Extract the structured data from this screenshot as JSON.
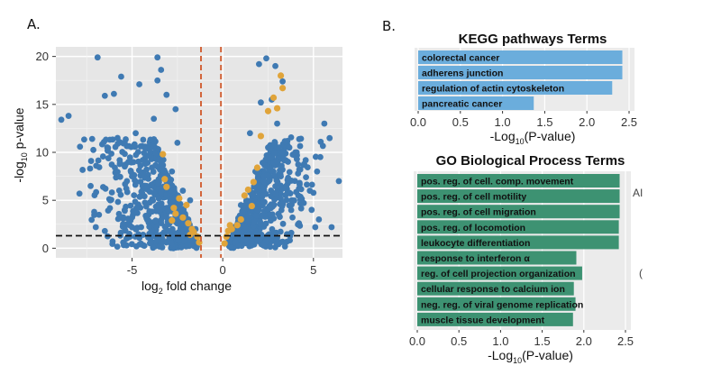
{
  "panels": {
    "a_label": "A.",
    "b_label": "B."
  },
  "stray_text": {
    "right_1": "AI",
    "right_2": "("
  },
  "colors": {
    "volcano_bg": "#e6e6e6",
    "point_main": "#3f7ab3",
    "point_highlight": "#e0a43a",
    "vline": "#d2643a",
    "hline": "#111111",
    "kegg_bar": "#6baddc",
    "go_bar": "#3d9272"
  },
  "chart_data": [
    {
      "type": "scatter",
      "title": "",
      "xlabel_main": "log",
      "xlabel_sub": "2",
      "xlabel_rest": " fold change",
      "ylabel_main": "-log",
      "ylabel_sub": "10",
      "ylabel_rest": " p-value",
      "xlim": [
        -9.2,
        6.6
      ],
      "ylim": [
        -1,
        21
      ],
      "xticks": [
        "-5",
        "0",
        "5"
      ],
      "xtick_values": [
        -5,
        0,
        5
      ],
      "yticks": [
        "0",
        "5",
        "10",
        "15",
        "20"
      ],
      "ytick_values": [
        0,
        5,
        10,
        15,
        20
      ],
      "vlines": [
        -1.2,
        -0.1
      ],
      "hline": 1.3,
      "series": [
        {
          "points": [
            [
              -8.9,
              13.4
            ],
            [
              -8.5,
              13.8
            ],
            [
              -7.9,
              5.7
            ],
            [
              -7.2,
              11.4
            ],
            [
              -6.9,
              19.9
            ],
            [
              -6.5,
              15.9
            ],
            [
              -6.0,
              16.1
            ],
            [
              -5.6,
              17.9
            ],
            [
              -5.4,
              3.9
            ],
            [
              -4.6,
              17.1
            ],
            [
              -3.6,
              19.9
            ],
            [
              -3.6,
              17.5
            ],
            [
              -3.4,
              18.6
            ],
            [
              -3.1,
              16.0
            ],
            [
              -5.2,
              9.0
            ],
            [
              -4.8,
              12.0
            ],
            [
              -3.8,
              13.5
            ],
            [
              -4.2,
              6.5
            ],
            [
              -6.2,
              5.0
            ],
            [
              -5.5,
              2.5
            ],
            [
              -5.0,
              7.5
            ],
            [
              -2.5,
              11.0
            ],
            [
              -2.8,
              8.0
            ],
            [
              -3.5,
              4.5
            ],
            [
              -2.2,
              6.0
            ],
            [
              -1.9,
              3.0
            ],
            [
              -1.5,
              2.0
            ],
            [
              -1.8,
              5.0
            ],
            [
              -6.5,
              1.8
            ],
            [
              -7.0,
              2.2
            ],
            [
              -3.0,
              1.8
            ],
            [
              -4.5,
              2.2
            ],
            [
              -2.6,
              14.5
            ],
            [
              -5.8,
              11.5
            ],
            [
              -4.0,
              10.0
            ],
            [
              2.4,
              19.8
            ],
            [
              2.0,
              19.2
            ],
            [
              2.9,
              19.0
            ],
            [
              3.3,
              17.4
            ],
            [
              2.7,
              15.5
            ],
            [
              2.1,
              15.2
            ],
            [
              3.0,
              13.0
            ],
            [
              5.6,
              13.0
            ],
            [
              5.4,
              11.1
            ],
            [
              4.5,
              8.7
            ],
            [
              5.2,
              8.0
            ],
            [
              6.4,
              7.0
            ],
            [
              4.9,
              4.0
            ],
            [
              5.3,
              3.0
            ],
            [
              4.2,
              2.6
            ],
            [
              5.1,
              2.2
            ],
            [
              1.5,
              12.0
            ],
            [
              2.5,
              10.5
            ],
            [
              3.5,
              6.5
            ],
            [
              1.8,
              8.0
            ],
            [
              3.8,
              5.0
            ],
            [
              2.6,
              3.5
            ],
            [
              0.6,
              2.2
            ],
            [
              1.0,
              4.5
            ],
            [
              4.0,
              10.0
            ],
            [
              3.2,
              7.5
            ],
            [
              4.8,
              6.0
            ],
            [
              1.4,
              2.8
            ],
            [
              2.2,
              5.5
            ],
            [
              6.0,
              2.2
            ]
          ]
        },
        {
          "points": [
            [
              -3.3,
              9.8
            ],
            [
              -3.2,
              7.2
            ],
            [
              -3.1,
              6.4
            ],
            [
              -2.7,
              4.2
            ],
            [
              -2.6,
              3.6
            ],
            [
              -2.8,
              2.9
            ],
            [
              -2.2,
              3.2
            ],
            [
              -1.9,
              2.6
            ],
            [
              -1.7,
              2.0
            ],
            [
              -1.6,
              1.7
            ],
            [
              -1.4,
              1.2
            ],
            [
              -1.3,
              0.6
            ],
            [
              -2.4,
              5.2
            ],
            [
              -2.0,
              4.5
            ],
            [
              -1.8,
              1.4
            ],
            [
              0.1,
              0.5
            ],
            [
              0.2,
              1.2
            ],
            [
              0.3,
              1.8
            ],
            [
              0.4,
              2.4
            ],
            [
              0.5,
              2.0
            ],
            [
              0.8,
              2.4
            ],
            [
              1.0,
              3.0
            ],
            [
              1.2,
              5.5
            ],
            [
              1.4,
              6.1
            ],
            [
              1.7,
              6.9
            ],
            [
              1.9,
              8.4
            ],
            [
              2.1,
              11.7
            ],
            [
              2.5,
              14.3
            ],
            [
              2.8,
              15.7
            ],
            [
              3.0,
              14.6
            ],
            [
              3.3,
              16.7
            ],
            [
              3.2,
              18.0
            ],
            [
              1.6,
              4.4
            ]
          ]
        }
      ]
    },
    {
      "type": "bar",
      "title": "KEGG pathways Terms",
      "xlabel_main": "-Log",
      "xlabel_sub": "10",
      "xlabel_rest": "(P-value)",
      "xlim": [
        0,
        2.5
      ],
      "xticks": [
        "0.0",
        "0.5",
        "1.0",
        "1.5",
        "2.0",
        "2.5"
      ],
      "xtick_values": [
        0,
        0.5,
        1,
        1.5,
        2,
        2.5
      ],
      "categories": [
        "colorectal cancer",
        "adherens junction",
        "regulation of actin cytoskeleton",
        "pancreatic cancer"
      ],
      "values": [
        2.42,
        2.42,
        2.3,
        1.37
      ]
    },
    {
      "type": "bar",
      "title": "GO Biological Process Terms",
      "xlabel_main": "-Log",
      "xlabel_sub": "10",
      "xlabel_rest": "(P-value)",
      "xlim": [
        0,
        2.5
      ],
      "xticks": [
        "0.0",
        "0.5",
        "1.0",
        "1.5",
        "2.0",
        "2.5"
      ],
      "xtick_values": [
        0,
        0.5,
        1,
        1.5,
        2,
        2.5
      ],
      "categories": [
        "pos. reg. of cell. comp. movement",
        "pos. reg. of cell motility",
        "pos. reg. of cell migration",
        "pos. reg. of locomotion",
        "leukocyte differentiation",
        "response to interferon α",
        "reg. of cell projection organization",
        "cellular response to calcium ion",
        "neg. reg. of viral genome replication",
        "muscle tissue development"
      ],
      "values": [
        2.43,
        2.43,
        2.43,
        2.42,
        2.42,
        1.91,
        1.98,
        1.88,
        1.9,
        1.87
      ]
    }
  ]
}
